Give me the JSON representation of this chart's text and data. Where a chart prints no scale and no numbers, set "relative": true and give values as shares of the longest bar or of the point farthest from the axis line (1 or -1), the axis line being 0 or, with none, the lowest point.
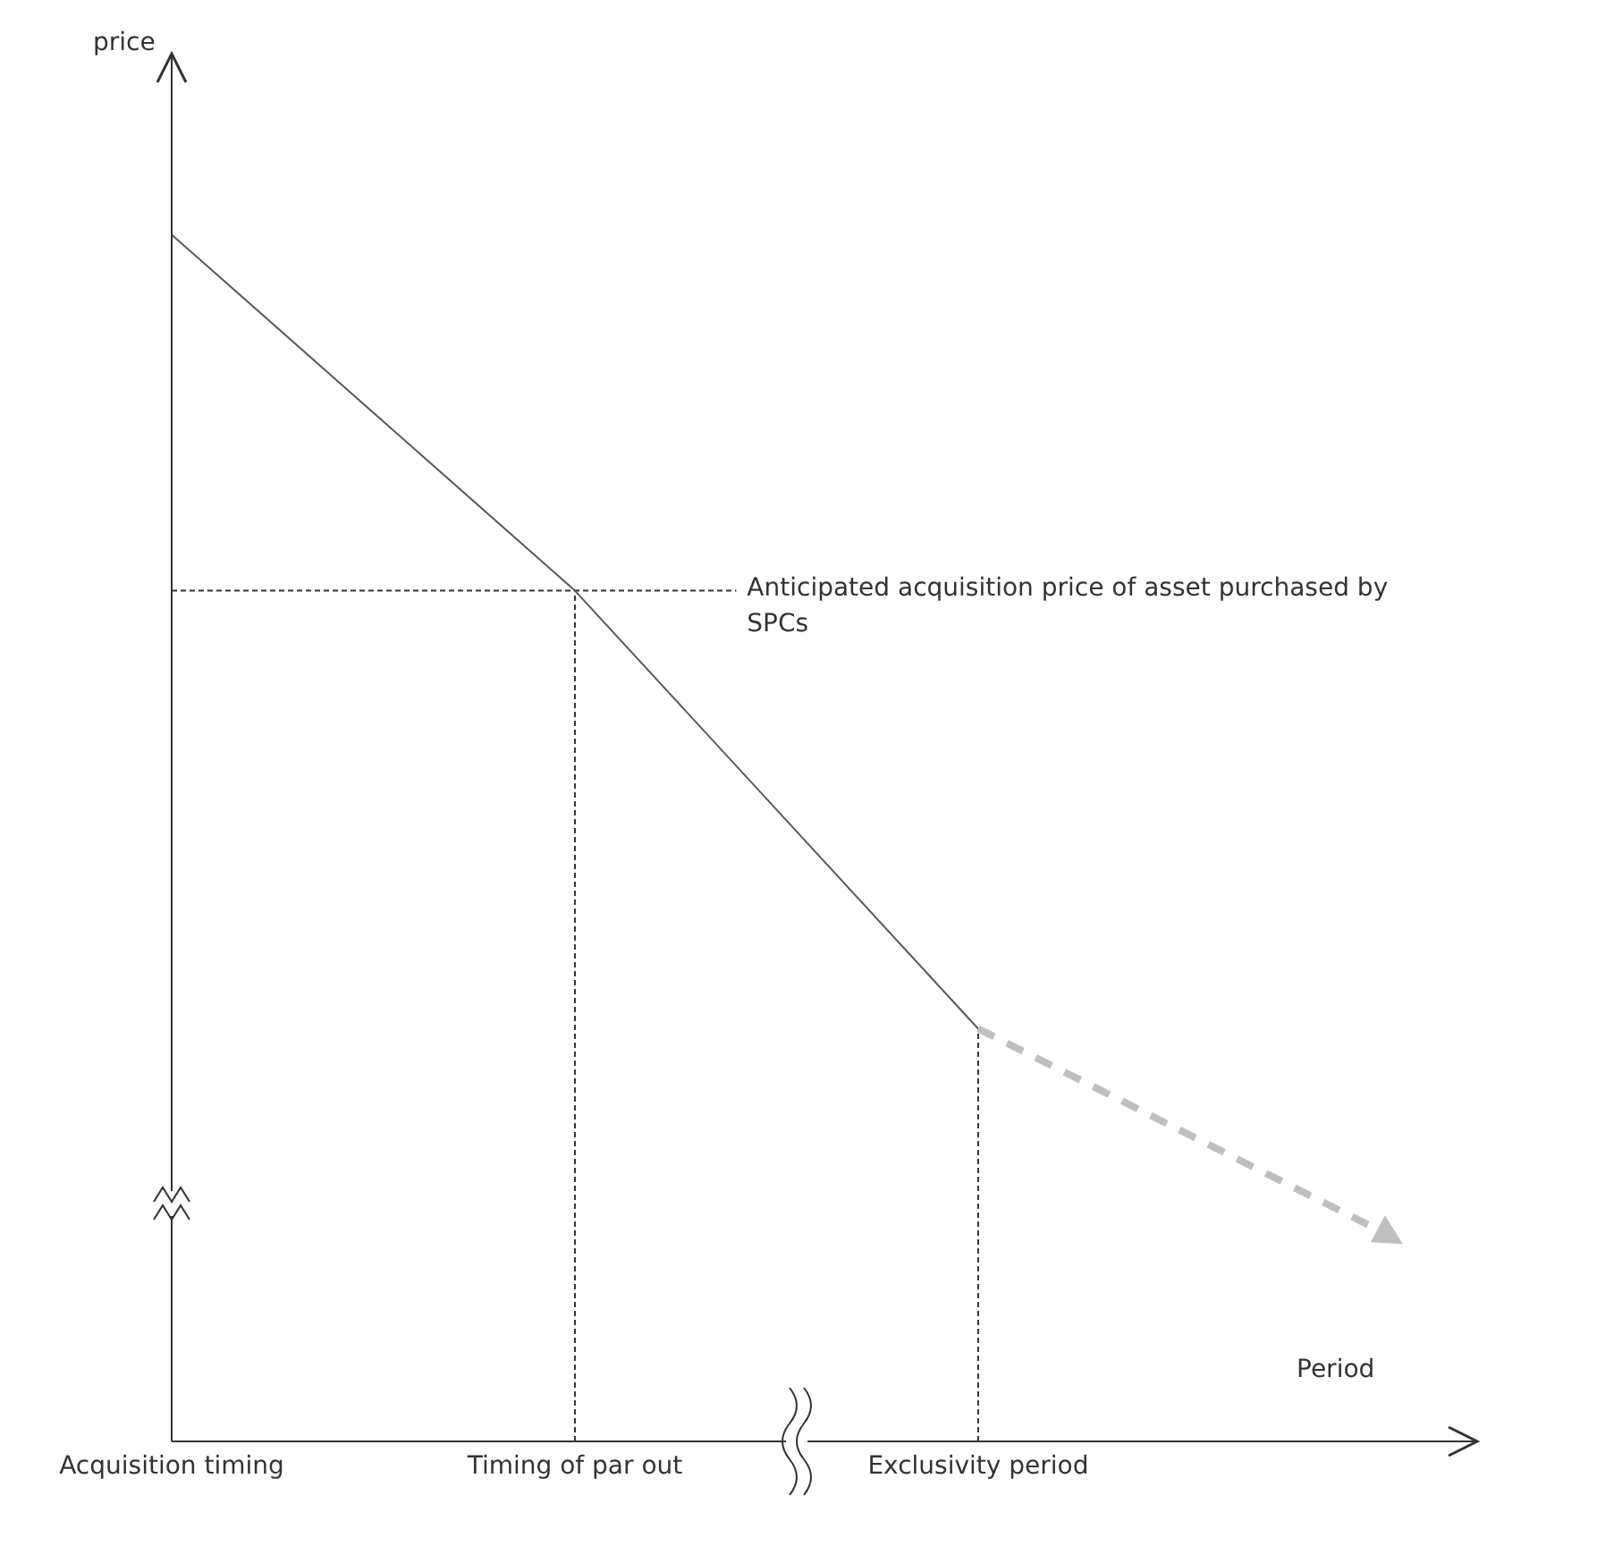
{
  "chart_data": {
    "type": "line",
    "relative": true,
    "annotations": [
      "price"
    ],
    "xlabel": "Period",
    "categories": [
      "Acquisition timing",
      "Timing of par out",
      "Exclusivity period",
      null
    ],
    "series": [
      {
        "color": "#595959",
        "values": [
          1,
          0.705,
          0.342,
          null
        ],
        "line_style": "solid"
      },
      {
        "color": "#bfbfbf",
        "values": [
          null,
          null,
          0.342,
          0.174
        ],
        "line_style": "dashed"
      }
    ],
    "ref_lines": [
      {
        "axis": "y",
        "value": 0.705,
        "label": "Anticipated acquisition price of asset purchased by SPCs",
        "color": "#333333",
        "line_style": "dashed"
      },
      {
        "axis": "x",
        "value": "Timing of par out",
        "color": "#333333",
        "line_style": "dashed"
      },
      {
        "axis": "x",
        "value": "Exclusivity period",
        "color": "#333333",
        "line_style": "dashed"
      }
    ],
    "grid": false,
    "legend": false
  }
}
